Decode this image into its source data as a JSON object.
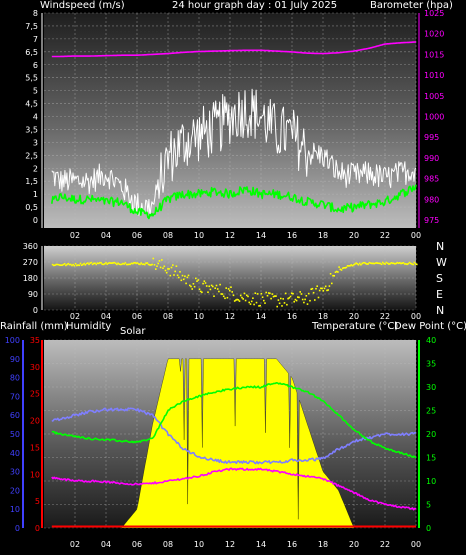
{
  "header": {
    "windspeed_label": "Windspeed (m/s)",
    "title": "24 hour graph day : 01 July 2025",
    "barometer_label": "Barometer (hpa)"
  },
  "bottom_header": {
    "rainfall_label": "Rainfall (mm)",
    "humidity_label": "Humidity",
    "solar_label": "Solar",
    "temperature_label": "Temperature (°C)",
    "dewpoint_label": "Dew Point (°C)"
  },
  "compass": [
    "N",
    "W",
    "S",
    "E",
    "N"
  ],
  "colors": {
    "gust": "#ffffff",
    "wind_avg": "#00ff00",
    "barometer": "#ff00ff",
    "direction": "#ffff00",
    "temperature": "#00ff00",
    "dewpoint": "#ff00ff",
    "humidity": "#7f7fff",
    "solar": "#ffff00",
    "rain": "#ff0000",
    "axis_blue": "#4040ff",
    "axis_red": "#ff0000",
    "axis_green": "#00ff00"
  },
  "chart_data": [
    {
      "type": "line",
      "name": "wind_and_pressure",
      "x_ticks": [
        "02",
        "04",
        "06",
        "08",
        "10",
        "12",
        "14",
        "16",
        "18",
        "20",
        "22",
        "00"
      ],
      "y_left_ticks": [
        "0",
        "0,5",
        "1",
        "1,5",
        "2",
        "2,5",
        "3",
        "3,5",
        "4",
        "4,5",
        "5",
        "5,5",
        "6",
        "6,5",
        "7",
        "7,5",
        "8"
      ],
      "y_right_ticks": [
        "975",
        "980",
        "985",
        "990",
        "995",
        "1000",
        "1005",
        "1010",
        "1015",
        "1020",
        "1025"
      ],
      "ylim_left": [
        0,
        8
      ],
      "ylim_right": [
        975,
        1025
      ],
      "x_hours": [
        0,
        1,
        2,
        3,
        4,
        5,
        6,
        7,
        8,
        9,
        10,
        11,
        12,
        13,
        14,
        15,
        16,
        17,
        18,
        19,
        20,
        21,
        22,
        23,
        24
      ],
      "gust": [
        2.0,
        1.5,
        1.5,
        1.5,
        1.8,
        1.3,
        0.6,
        0.5,
        2.4,
        3.0,
        3.3,
        3.5,
        4.0,
        4.3,
        4.0,
        3.4,
        3.3,
        2.6,
        2.5,
        1.8,
        1.7,
        1.8,
        1.6,
        1.8,
        2.0
      ],
      "wind_avg": [
        0.5,
        0.9,
        0.8,
        0.8,
        0.7,
        0.7,
        0.3,
        0.2,
        0.8,
        1.0,
        1.0,
        1.1,
        1.0,
        1.2,
        1.0,
        1.0,
        0.9,
        0.7,
        0.6,
        0.4,
        0.5,
        0.6,
        0.7,
        1.0,
        1.3
      ],
      "barometer": [
        1014.5,
        1014.5,
        1014.6,
        1014.6,
        1014.7,
        1014.8,
        1014.8,
        1015.0,
        1015.2,
        1015.5,
        1015.7,
        1015.8,
        1015.9,
        1016.0,
        1016.0,
        1015.8,
        1015.6,
        1015.3,
        1015.2,
        1015.4,
        1015.8,
        1016.5,
        1017.5,
        1017.8,
        1018.0
      ]
    },
    {
      "type": "scatter",
      "name": "wind_direction",
      "x_ticks": [
        "02",
        "04",
        "06",
        "08",
        "10",
        "12",
        "14",
        "16",
        "18",
        "20",
        "22",
        "00"
      ],
      "y_ticks": [
        "0",
        "90",
        "180",
        "270",
        "360"
      ],
      "ylim": [
        0,
        360
      ],
      "x_hours": [
        0,
        1,
        2,
        3,
        4,
        5,
        6,
        7,
        8,
        9,
        10,
        11,
        12,
        13,
        14,
        15,
        16,
        17,
        18,
        19,
        20,
        21,
        22,
        23,
        24
      ],
      "direction": [
        255,
        255,
        255,
        262,
        262,
        262,
        262,
        258,
        235,
        180,
        130,
        115,
        95,
        70,
        60,
        55,
        60,
        70,
        120,
        225,
        260,
        262,
        262,
        262,
        262
      ]
    },
    {
      "type": "line",
      "name": "temperature_humidity_solar",
      "x_ticks": [
        "02",
        "04",
        "06",
        "08",
        "10",
        "12",
        "14",
        "16",
        "18",
        "20",
        "22",
        "00"
      ],
      "y_humidity_ticks": [
        "0",
        "10",
        "20",
        "30",
        "40",
        "50",
        "60",
        "70",
        "80",
        "90",
        "100"
      ],
      "y_rain_ticks": [
        "0",
        "5",
        "10",
        "15",
        "20",
        "25",
        "30",
        "35"
      ],
      "y_temp_ticks": [
        "0",
        "5",
        "10",
        "15",
        "20",
        "25",
        "30",
        "35",
        "40"
      ],
      "ylim_humidity": [
        0,
        100
      ],
      "ylim_rain": [
        0,
        35
      ],
      "ylim_temp": [
        0,
        40
      ],
      "x_hours": [
        0,
        1,
        2,
        3,
        4,
        5,
        6,
        7,
        8,
        9,
        10,
        11,
        12,
        13,
        14,
        15,
        16,
        17,
        18,
        19,
        20,
        21,
        22,
        23,
        24
      ],
      "humidity": [
        57,
        58,
        60,
        62,
        63,
        63,
        63,
        60,
        50,
        42,
        38,
        36,
        35,
        35,
        35,
        35,
        36,
        36,
        37,
        42,
        46,
        48,
        50,
        50,
        50
      ],
      "temperature": [
        21,
        20,
        19.5,
        19,
        18.8,
        18.5,
        18.3,
        19,
        25,
        27,
        28,
        29,
        29.5,
        30,
        30,
        31,
        30,
        29,
        27,
        24,
        21,
        18.5,
        17,
        16,
        15
      ],
      "dewpoint": [
        11,
        10.5,
        10,
        10,
        9.8,
        9.5,
        9.3,
        9.5,
        10,
        10.5,
        11,
        12,
        12.5,
        12.5,
        12.5,
        12,
        11.5,
        11,
        10.5,
        9,
        7.5,
        6,
        5,
        4.5,
        4
      ],
      "solar": [
        0,
        0,
        0,
        0,
        0,
        0,
        10,
        55,
        90,
        90,
        90,
        90,
        90,
        90,
        90,
        90,
        80,
        55,
        30,
        20,
        0,
        0,
        0,
        0,
        0
      ],
      "rain": [
        0,
        0,
        0,
        0,
        0,
        0,
        0,
        0,
        0,
        0,
        0,
        0,
        0,
        0,
        0,
        0,
        0,
        0,
        0,
        0,
        0,
        0,
        0,
        0,
        0
      ]
    }
  ]
}
